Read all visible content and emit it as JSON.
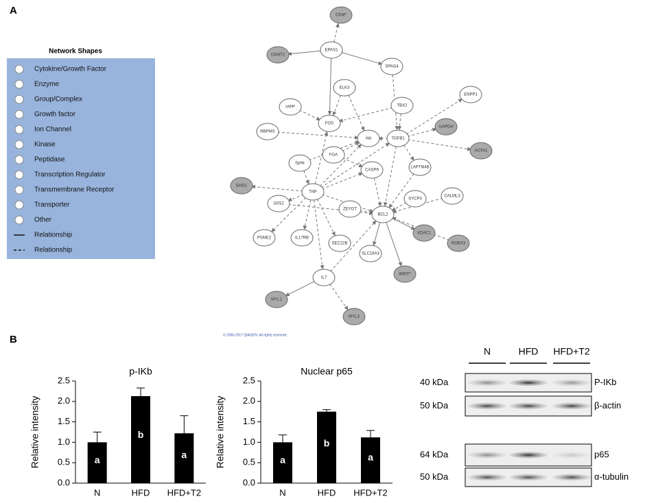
{
  "panel_labels": [
    "A",
    "B"
  ],
  "legend": {
    "title": "Network Shapes",
    "items": [
      "Cytokine/Growth Factor",
      "Enzyme",
      "Group/Complex",
      "Growth factor",
      "Ion Channel",
      "Kinase",
      "Peptidase",
      "Transcription Regulator",
      "Transmembrane Receptor",
      "Transporter",
      "Other",
      "Relationship",
      "Relationship"
    ]
  },
  "network": {
    "nodes": [
      "CKM*",
      "CKMT2",
      "EPAS1",
      "SPAG4",
      "ELK3",
      "TBX2",
      "ENPP1",
      "IAPP",
      "FOS",
      "GAPDH",
      "RBPMS",
      "Akt",
      "TGFB1",
      "ACTA1",
      "FGA",
      "Sphk",
      "CASP9",
      "LAPTM4B",
      "EHD1",
      "TNF",
      "CALML3",
      "SYCP3",
      "G0S2",
      "ZEYOT",
      "BCL2",
      "VDAC1",
      "PSME2",
      "IL17RB",
      "SEC22B",
      "ROBX3",
      "SLC16A3",
      "IMMT*",
      "IL7",
      "MYL1",
      "MYL3"
    ],
    "copyright": "© 2000-2017 QIAGEN. All rights reserved."
  },
  "chart_data": [
    {
      "type": "bar",
      "title": "p-IKb",
      "y_label": "Relative intensity",
      "categories": [
        "N",
        "HFD",
        "HFD+T2"
      ],
      "values": [
        1.0,
        2.13,
        1.22
      ],
      "errors": [
        0.25,
        0.2,
        0.43
      ],
      "group_labels": [
        "a",
        "b",
        "a"
      ],
      "color": "#000000",
      "ylim": [
        0,
        2.5
      ],
      "yticks": [
        {
          "value": 0,
          "label": "0.0"
        },
        0.5,
        {
          "value": 1,
          "label": "1.0"
        },
        1.5,
        {
          "value": 2,
          "label": "2.0"
        },
        2.5
      ]
    },
    {
      "type": "bar",
      "title": "Nuclear p65",
      "y_label": "Relative intensity",
      "categories": [
        "N",
        "HFD",
        "HFD+T2"
      ],
      "values": [
        1.0,
        1.75,
        1.12
      ],
      "errors": [
        0.18,
        0.05,
        0.17
      ],
      "group_labels": [
        "a",
        "b",
        "a"
      ],
      "color": "#000000",
      "ylim": [
        0,
        2.5
      ],
      "yticks": [
        {
          "value": 0,
          "label": "0.0"
        },
        0.5,
        {
          "value": 1,
          "label": "1.0"
        },
        1.5,
        {
          "value": 2,
          "label": "2.0"
        },
        2.5
      ]
    }
  ],
  "blot": {
    "lanes": [
      "N",
      "HFD",
      "HFD+T2"
    ],
    "rows": [
      {
        "size": "40 kDa",
        "protein": "P-IKb"
      },
      {
        "size": "50 kDa",
        "protein": "β-actin"
      },
      {
        "size": "64 kDa",
        "protein": "p65"
      },
      {
        "size": "50 kDa",
        "protein": "α-tubulin"
      }
    ]
  }
}
